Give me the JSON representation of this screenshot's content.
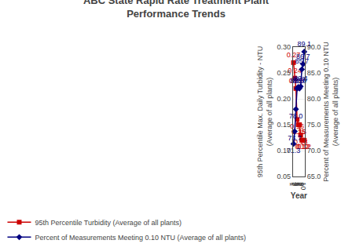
{
  "chart_data": {
    "type": "line",
    "title": "ABC State Rapid Rate Treatment Plant\nPerformance Trends",
    "x_label": "Year",
    "y_label": "95th Percentile Max. Daily Turbidity - NTU\n(Average of all plants)",
    "y2_label": "Percent of Measurements Meeting 0.10 NTU\n(Average of all plants)",
    "x": [
      1,
      2,
      3,
      4,
      5,
      6,
      7,
      8,
      9,
      10
    ],
    "xlim": [
      0.5,
      10.5
    ],
    "xticks": [
      1,
      2,
      3,
      4,
      5,
      6,
      7,
      8,
      9,
      10
    ],
    "ylim": [
      0.05,
      0.3
    ],
    "yticks": [
      0.05,
      {
        "value": 0.1,
        "label": "0.10"
      },
      0.15,
      {
        "value": 0.2,
        "label": "0.20"
      },
      0.25,
      {
        "value": 0.3,
        "label": "0.30"
      }
    ],
    "y2lim": [
      65.0,
      90.0
    ],
    "y2ticks": [
      {
        "value": 65,
        "label": "65.0"
      },
      {
        "value": 70,
        "label": "70.0"
      },
      {
        "value": 75,
        "label": "75.0"
      },
      {
        "value": 80,
        "label": "80.0"
      },
      {
        "value": 85,
        "label": "85.0"
      },
      {
        "value": 90,
        "label": "90.0"
      }
    ],
    "grid": true,
    "legend": "lower left",
    "data_labels": true,
    "series": [
      {
        "name": "95th Percentile Turbidity (Average of all plants)",
        "color": "#CC0000",
        "marker": "square",
        "values": [
          0.27,
          0.24,
          0.22,
          0.16,
          0.15,
          0.15,
          0.13,
          0.12,
          0.12,
          0.12
        ]
      },
      {
        "name": "Percent of Measurements Meeting 0.10 NTU (Average of all plants)",
        "color": "#000080",
        "marker": "diamond",
        "axis": "y2",
        "values": [
          71.3,
          73.7,
          78.0,
          82.0,
          82.3,
          82.0,
          82.4,
          85.7,
          86.7,
          89.1
        ],
        "value_labels": [
          "71.3",
          "73.7",
          "78.0",
          "82.0",
          "82.3",
          "82.0",
          "82.4",
          "85.7",
          "86.7",
          "89.1"
        ]
      }
    ]
  }
}
